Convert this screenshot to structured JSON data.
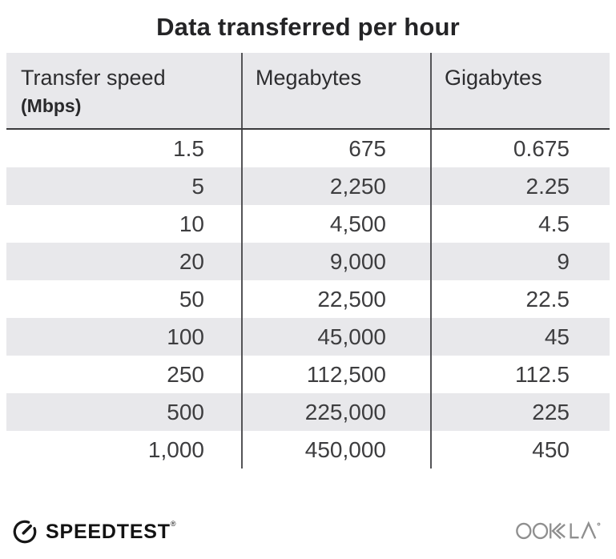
{
  "title": "Data transferred per hour",
  "table": {
    "columns": [
      {
        "label": "Transfer speed",
        "sublabel": "(Mbps)"
      },
      {
        "label": "Megabytes"
      },
      {
        "label": "Gigabytes"
      }
    ],
    "rows": [
      [
        "1.5",
        "675",
        "0.675"
      ],
      [
        "5",
        "2,250",
        "2.25"
      ],
      [
        "10",
        "4,500",
        "4.5"
      ],
      [
        "20",
        "9,000",
        "9"
      ],
      [
        "50",
        "22,500",
        "22.5"
      ],
      [
        "100",
        "45,000",
        "45"
      ],
      [
        "250",
        "112,500",
        "112.5"
      ],
      [
        "500",
        "225,000",
        "225"
      ],
      [
        "1,000",
        "450,000",
        "450"
      ]
    ]
  },
  "chart_data": {
    "type": "table",
    "title": "Data transferred per hour",
    "columns": [
      "Transfer speed (Mbps)",
      "Megabytes",
      "Gigabytes"
    ],
    "rows": [
      [
        1.5,
        675,
        0.675
      ],
      [
        5,
        2250,
        2.25
      ],
      [
        10,
        4500,
        4.5
      ],
      [
        20,
        9000,
        9
      ],
      [
        50,
        22500,
        22.5
      ],
      [
        100,
        45000,
        45
      ],
      [
        250,
        112500,
        112.5
      ],
      [
        500,
        225000,
        225
      ],
      [
        1000,
        450000,
        450
      ]
    ]
  },
  "footer": {
    "speedtest_label": "SPEEDTEST",
    "speedtest_trademark": "®",
    "ookla_label": "OOKLA",
    "ookla_trademark": "®"
  },
  "colors": {
    "stripe_gray": "#e8e8eb",
    "divider_gray": "#545457",
    "header_rule": "#3a3a3c",
    "title_text": "#242426",
    "cell_text": "#3d3d3f",
    "speedtest_black": "#121212",
    "ookla_gray": "#8f8f8f"
  }
}
